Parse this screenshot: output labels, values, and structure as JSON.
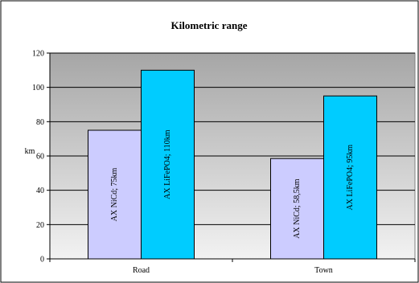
{
  "chart_data": {
    "type": "bar",
    "title": "Kilometric range",
    "xlabel": "",
    "ylabel": "km",
    "ylim": [
      0,
      120
    ],
    "yticks": [
      0,
      20,
      40,
      60,
      80,
      100,
      120
    ],
    "categories": [
      "Road",
      "Town"
    ],
    "series": [
      {
        "values": [
          75,
          58.5
        ],
        "data_labels": [
          "AX NiCd; 75km",
          "AX NiCd; 58,5km"
        ],
        "color": "#CCCCFF"
      },
      {
        "values": [
          110,
          95
        ],
        "data_labels": [
          "AX LiFePO4; 110km",
          "AX LiFePO4; 95km"
        ],
        "color": "#00CCFF"
      }
    ],
    "grid": true,
    "legend": "none"
  }
}
